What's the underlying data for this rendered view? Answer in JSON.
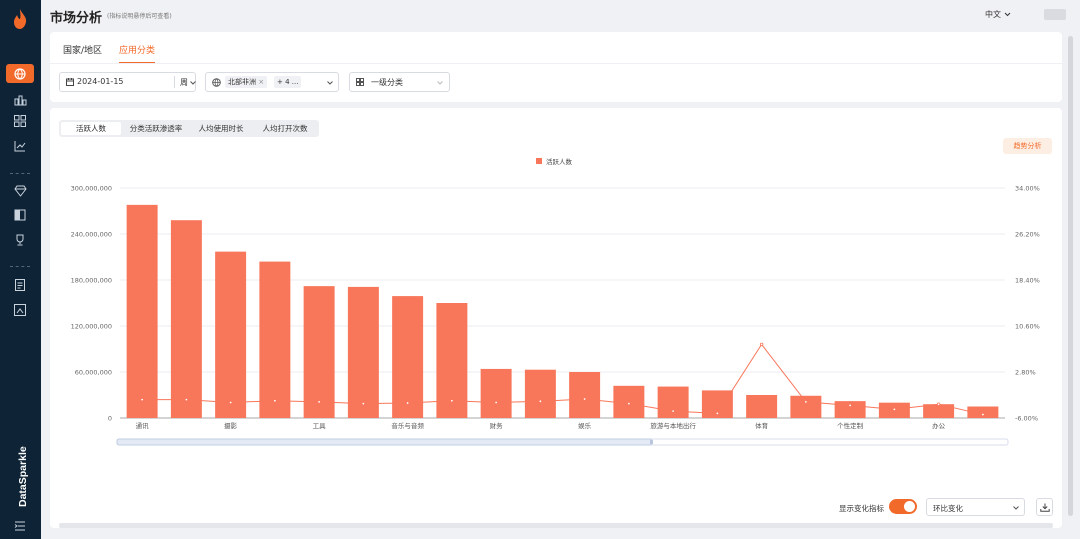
{
  "sidebar": {
    "items": [
      "flame-logo-icon",
      "globe-icon",
      "app-ranking-icon",
      "grid-icon",
      "chart-icon",
      "diamond-icon",
      "book-icon",
      "trophy-icon",
      "report-icon",
      "market-icon"
    ],
    "brand": "DataSparkle",
    "accent": "#f26a2a"
  },
  "header": {
    "title": "市场分析",
    "hint": "(指标说明悬停后可查看)",
    "lang": "中文",
    "lang_icon": "chevron-down-icon"
  },
  "filters": {
    "tabs": [
      {
        "label": "国家/地区",
        "active": false
      },
      {
        "label": "应用分类",
        "active": true
      }
    ],
    "date": "2024-01-15",
    "period": "周",
    "region_tag": "北部非洲",
    "region_more": "+ 4 ...",
    "category": "一级分类"
  },
  "main": {
    "metric_tabs": [
      "活跃人数",
      "分类活跃渗透率",
      "人均使用时长",
      "人均打开次数"
    ],
    "active_metric": 0,
    "trend_button": "趋势分析",
    "toggle_label": "显示变化指标",
    "toggle_on": true,
    "compare_select": "环比变化"
  },
  "chart_data": {
    "type": "bar",
    "legend": [
      "活跃人数"
    ],
    "legend_position": "top-center",
    "categories": [
      "通讯",
      "",
      "摄影",
      "",
      "工具",
      "",
      "音乐与音频",
      "",
      "财务",
      "",
      "娱乐",
      "",
      "旅游与本地出行",
      "",
      "体育",
      "",
      "个性定制",
      "",
      "办公",
      ""
    ],
    "series": [
      {
        "name": "活跃人数",
        "type": "bar",
        "color": "#f8765a",
        "values": [
          278000000,
          258000000,
          217000000,
          204000000,
          172000000,
          171000000,
          159000000,
          150000000,
          64000000,
          63000000,
          60000000,
          42000000,
          41000000,
          36000000,
          30000000,
          29000000,
          22000000,
          20000000,
          18000000,
          15000000
        ]
      },
      {
        "type": "line",
        "color": "#f8765a",
        "axis": "right",
        "values": [
          -2.8,
          -2.8,
          -3.3,
          -3.0,
          -3.2,
          -3.5,
          -3.4,
          -3.0,
          -3.3,
          -3.1,
          -2.7,
          -3.5,
          -4.8,
          -5.2,
          6.8,
          -3.2,
          -3.8,
          -4.5,
          -3.6,
          -5.4
        ]
      }
    ],
    "y_ticks": [
      "0",
      "60,000,000",
      "120,000,000",
      "180,000,000",
      "240,000,000",
      "300,000,000"
    ],
    "y2_ticks": [
      "-6.00%",
      "2.80%",
      "10.60%",
      "18.40%",
      "26.20%",
      "34.00%"
    ],
    "ylim": [
      0,
      300000000
    ],
    "y2lim": [
      -6,
      34
    ],
    "grid": true
  }
}
